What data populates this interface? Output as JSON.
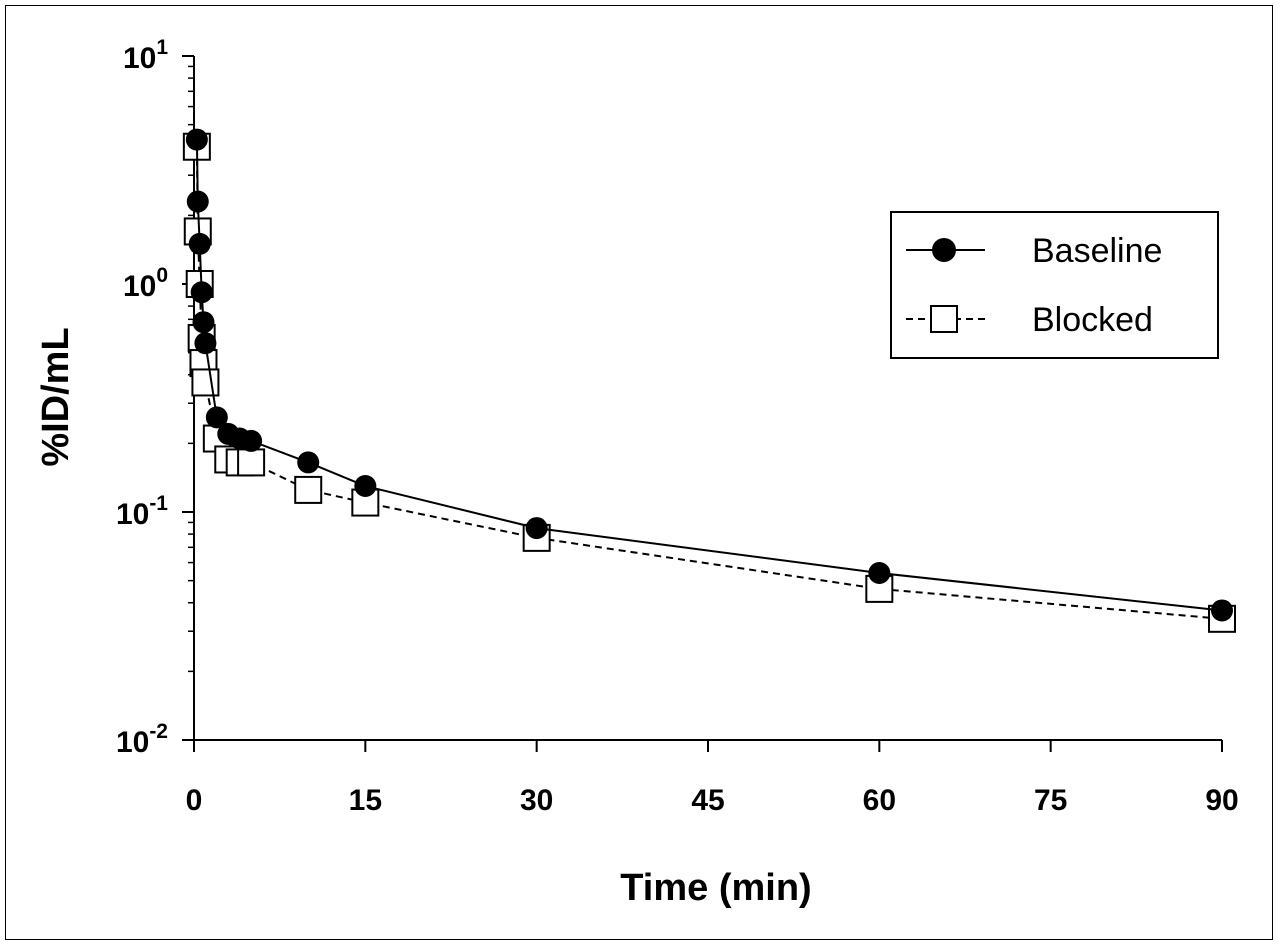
{
  "chart_data": {
    "type": "line",
    "title": "",
    "xlabel": "Time (min)",
    "ylabel": "%ID/mL",
    "x_ticks": [
      "0",
      "15",
      "30",
      "45",
      "60",
      "75",
      "90"
    ],
    "x_tick_values": [
      0,
      15,
      30,
      45,
      60,
      75,
      90
    ],
    "y_ticks": [
      {
        "base": "10",
        "exp": "1",
        "value": 10
      },
      {
        "base": "10",
        "exp": "0",
        "value": 1
      },
      {
        "base": "10",
        "exp": "-1",
        "value": 0.1
      },
      {
        "base": "10",
        "exp": "-2",
        "value": 0.01
      }
    ],
    "xlim": [
      0,
      90
    ],
    "ylim": [
      0.01,
      10
    ],
    "y_scale": "log",
    "grid": false,
    "legend_position": "top-right",
    "series": [
      {
        "name": "Baseline",
        "line_style": "solid",
        "marker": "filled-circle",
        "x": [
          0.25,
          0.33,
          0.5,
          0.67,
          0.83,
          1.0,
          2.0,
          3.0,
          4.0,
          5.0,
          10,
          15,
          30,
          60,
          90
        ],
        "y": [
          4.3,
          2.3,
          1.5,
          0.92,
          0.68,
          0.55,
          0.26,
          0.22,
          0.21,
          0.205,
          0.165,
          0.13,
          0.085,
          0.054,
          0.037
        ]
      },
      {
        "name": "Blocked",
        "line_style": "dashed",
        "marker": "open-square",
        "x": [
          0.25,
          0.33,
          0.5,
          0.67,
          0.83,
          1.0,
          2.0,
          3.0,
          4.0,
          5.0,
          10,
          15,
          30,
          60,
          90
        ],
        "y": [
          4.0,
          1.7,
          1.0,
          0.58,
          0.45,
          0.37,
          0.21,
          0.17,
          0.165,
          0.165,
          0.125,
          0.11,
          0.077,
          0.046,
          0.034
        ]
      }
    ]
  },
  "colors": {
    "ink": "#000000",
    "background": "#ffffff"
  }
}
